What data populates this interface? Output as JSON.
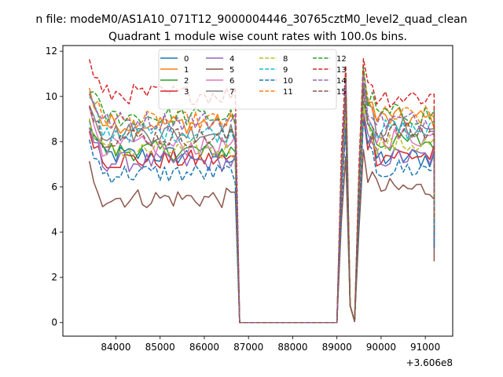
{
  "chart_data": {
    "type": "line",
    "suptitle": "n file: modeM0/AS1A10_071T12_9000004446_30765cztM0_level2_quad_clean",
    "title": "Quadrant 1 module wise count rates with 100.0s bins.",
    "xlabel": "",
    "ylabel": "",
    "x_offset_label": "+3.606e8",
    "xlim": [
      82800,
      91620
    ],
    "ylim": [
      -0.6,
      12.25
    ],
    "x_ticks": [
      84000,
      85000,
      86000,
      87000,
      88000,
      89000,
      90000,
      91000
    ],
    "x_tick_labels": [
      "84000",
      "85000",
      "86000",
      "87000",
      "88000",
      "89000",
      "90000",
      "91000"
    ],
    "y_ticks": [
      0,
      2,
      4,
      6,
      8,
      10,
      12
    ],
    "y_tick_labels": [
      "0",
      "2",
      "4",
      "6",
      "8",
      "10",
      "12"
    ],
    "grid": false,
    "legend": {
      "placement": "top-center",
      "columns": 4
    },
    "x_start_1": 83400,
    "x_step": 100,
    "x_start_2": 89100,
    "gap_x": [
      86800,
      86900,
      87000,
      89000
    ],
    "gap_y": [
      0,
      0,
      0,
      0
    ],
    "series": [
      {
        "name": "0",
        "color": "#1f77b4",
        "dashed": false,
        "level1": 7.4,
        "level2": 7.3
      },
      {
        "name": "1",
        "color": "#ff7f0e",
        "dashed": false,
        "level1": 8.8,
        "level2": 9.0
      },
      {
        "name": "2",
        "color": "#2ca02c",
        "dashed": false,
        "level1": 7.6,
        "level2": 8.0
      },
      {
        "name": "3",
        "color": "#d62728",
        "dashed": false,
        "level1": 7.2,
        "level2": 7.4
      },
      {
        "name": "4",
        "color": "#9467bd",
        "dashed": false,
        "level1": 7.1,
        "level2": 7.3
      },
      {
        "name": "5",
        "color": "#8c564b",
        "dashed": false,
        "level1": 5.5,
        "level2": 5.9
      },
      {
        "name": "6",
        "color": "#e377c2",
        "dashed": false,
        "level1": 7.8,
        "level2": 8.2
      },
      {
        "name": "7",
        "color": "#7f7f7f",
        "dashed": false,
        "level1": 8.4,
        "level2": 8.6
      },
      {
        "name": "8",
        "color": "#bcbd22",
        "dashed": true,
        "level1": 7.6,
        "level2": 7.9
      },
      {
        "name": "9",
        "color": "#17becf",
        "dashed": true,
        "level1": 8.4,
        "level2": 8.5
      },
      {
        "name": "10",
        "color": "#1f77b4",
        "dashed": true,
        "level1": 6.6,
        "level2": 6.8
      },
      {
        "name": "11",
        "color": "#ff7f0e",
        "dashed": true,
        "level1": 8.9,
        "level2": 9.1
      },
      {
        "name": "12",
        "color": "#2ca02c",
        "dashed": true,
        "level1": 9.1,
        "level2": 9.2
      },
      {
        "name": "13",
        "color": "#d62728",
        "dashed": true,
        "level1": 10.1,
        "level2": 10.0
      },
      {
        "name": "14",
        "color": "#9467bd",
        "dashed": true,
        "level1": 8.9,
        "level2": 8.9
      },
      {
        "name": "15",
        "color": "#8c564b",
        "dashed": true,
        "level1": 8.2,
        "level2": 8.4
      }
    ]
  }
}
